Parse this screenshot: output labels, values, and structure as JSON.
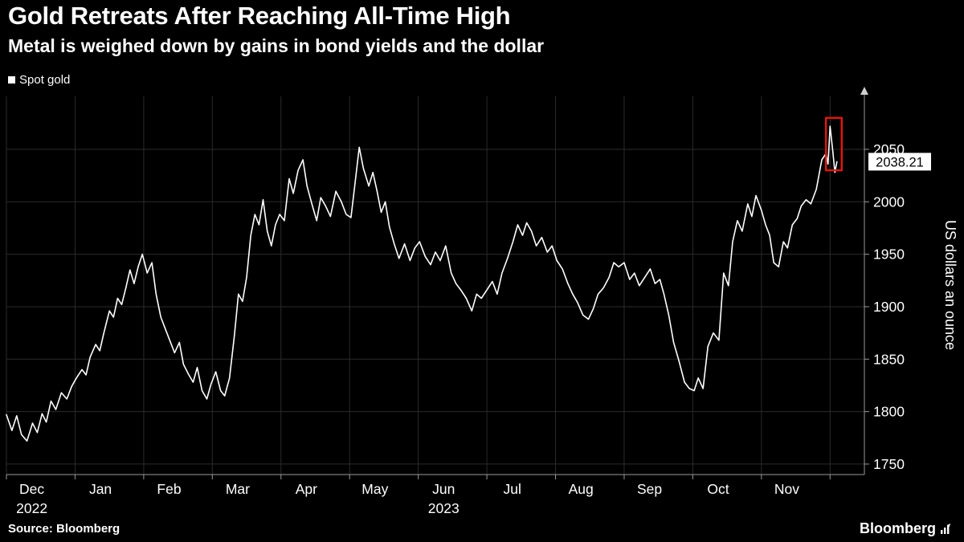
{
  "header": {
    "title": "Gold Retreats After Reaching All-Time High",
    "subtitle": "Metal is weighed down by gains in bond yields and the dollar"
  },
  "legend": {
    "label": "Spot gold",
    "swatch_color": "#ffffff"
  },
  "footer": {
    "source": "Source: Bloomberg",
    "brand": "Bloomberg"
  },
  "chart_data": {
    "type": "line",
    "title": "Gold Retreats After Reaching All-Time High",
    "subtitle": "Metal is weighed down by gains in bond yields and the dollar",
    "ylabel": "US dollars an ounce",
    "xlabel": "",
    "x_unit": "months since 2022-12-01",
    "xlim": [
      0,
      12.5
    ],
    "ylim": [
      1740,
      2100
    ],
    "y_ticks": [
      1750,
      1800,
      1850,
      1900,
      1950,
      2000,
      2050
    ],
    "x_tick_labels": [
      "Dec",
      "Jan",
      "Feb",
      "Mar",
      "Apr",
      "May",
      "Jun",
      "Jul",
      "Aug",
      "Sep",
      "Oct",
      "Nov"
    ],
    "x_year_labels": [
      {
        "label": "2022",
        "month": 0
      },
      {
        "label": "2023",
        "month": 6
      }
    ],
    "legend_position": "top-left",
    "grid": true,
    "last_price_label": "2038.21",
    "last_price_value": 2038.21,
    "highlight_box": {
      "x0": 11.94,
      "x1": 12.17,
      "y0": 2030,
      "y1": 2080
    },
    "colors": {
      "background": "#000000",
      "line": "#ffffff",
      "grid": "#2b2b2b",
      "axis": "#9a9a9a",
      "tick_text": "#ffffff",
      "highlight": "#e3170f",
      "label_bg": "#ffffff",
      "label_text": "#000000"
    },
    "series": [
      {
        "name": "Spot gold",
        "color": "#ffffff",
        "points": [
          [
            0.0,
            1797
          ],
          [
            0.08,
            1782
          ],
          [
            0.15,
            1796
          ],
          [
            0.22,
            1778
          ],
          [
            0.3,
            1772
          ],
          [
            0.38,
            1789
          ],
          [
            0.45,
            1780
          ],
          [
            0.52,
            1798
          ],
          [
            0.58,
            1790
          ],
          [
            0.65,
            1810
          ],
          [
            0.72,
            1802
          ],
          [
            0.8,
            1818
          ],
          [
            0.88,
            1812
          ],
          [
            0.95,
            1824
          ],
          [
            1.02,
            1832
          ],
          [
            1.1,
            1840
          ],
          [
            1.16,
            1835
          ],
          [
            1.22,
            1852
          ],
          [
            1.3,
            1864
          ],
          [
            1.36,
            1858
          ],
          [
            1.42,
            1875
          ],
          [
            1.5,
            1896
          ],
          [
            1.56,
            1890
          ],
          [
            1.62,
            1908
          ],
          [
            1.68,
            1902
          ],
          [
            1.74,
            1918
          ],
          [
            1.8,
            1935
          ],
          [
            1.86,
            1922
          ],
          [
            1.92,
            1938
          ],
          [
            1.98,
            1950
          ],
          [
            2.05,
            1932
          ],
          [
            2.12,
            1942
          ],
          [
            2.18,
            1912
          ],
          [
            2.25,
            1890
          ],
          [
            2.32,
            1878
          ],
          [
            2.38,
            1868
          ],
          [
            2.45,
            1856
          ],
          [
            2.52,
            1866
          ],
          [
            2.58,
            1845
          ],
          [
            2.65,
            1836
          ],
          [
            2.72,
            1828
          ],
          [
            2.78,
            1842
          ],
          [
            2.85,
            1820
          ],
          [
            2.92,
            1812
          ],
          [
            2.98,
            1826
          ],
          [
            3.05,
            1838
          ],
          [
            3.12,
            1820
          ],
          [
            3.18,
            1815
          ],
          [
            3.25,
            1832
          ],
          [
            3.32,
            1872
          ],
          [
            3.38,
            1912
          ],
          [
            3.44,
            1905
          ],
          [
            3.5,
            1928
          ],
          [
            3.56,
            1968
          ],
          [
            3.62,
            1988
          ],
          [
            3.68,
            1978
          ],
          [
            3.74,
            2002
          ],
          [
            3.8,
            1972
          ],
          [
            3.86,
            1958
          ],
          [
            3.92,
            1978
          ],
          [
            3.98,
            1988
          ],
          [
            4.05,
            1982
          ],
          [
            4.12,
            2022
          ],
          [
            4.18,
            2008
          ],
          [
            4.25,
            2030
          ],
          [
            4.32,
            2040
          ],
          [
            4.38,
            2015
          ],
          [
            4.45,
            1998
          ],
          [
            4.52,
            1982
          ],
          [
            4.58,
            2004
          ],
          [
            4.65,
            1996
          ],
          [
            4.72,
            1986
          ],
          [
            4.8,
            2010
          ],
          [
            4.88,
            2000
          ],
          [
            4.95,
            1988
          ],
          [
            5.02,
            1985
          ],
          [
            5.08,
            2018
          ],
          [
            5.14,
            2052
          ],
          [
            5.2,
            2032
          ],
          [
            5.28,
            2015
          ],
          [
            5.34,
            2028
          ],
          [
            5.4,
            2010
          ],
          [
            5.46,
            1990
          ],
          [
            5.52,
            2000
          ],
          [
            5.58,
            1976
          ],
          [
            5.65,
            1960
          ],
          [
            5.72,
            1946
          ],
          [
            5.8,
            1960
          ],
          [
            5.88,
            1944
          ],
          [
            5.95,
            1956
          ],
          [
            6.02,
            1962
          ],
          [
            6.1,
            1948
          ],
          [
            6.18,
            1940
          ],
          [
            6.25,
            1952
          ],
          [
            6.32,
            1944
          ],
          [
            6.4,
            1958
          ],
          [
            6.48,
            1932
          ],
          [
            6.55,
            1922
          ],
          [
            6.62,
            1916
          ],
          [
            6.7,
            1908
          ],
          [
            6.78,
            1896
          ],
          [
            6.85,
            1912
          ],
          [
            6.92,
            1908
          ],
          [
            7.0,
            1916
          ],
          [
            7.08,
            1924
          ],
          [
            7.15,
            1912
          ],
          [
            7.22,
            1932
          ],
          [
            7.3,
            1946
          ],
          [
            7.38,
            1962
          ],
          [
            7.45,
            1978
          ],
          [
            7.52,
            1968
          ],
          [
            7.58,
            1980
          ],
          [
            7.65,
            1972
          ],
          [
            7.72,
            1958
          ],
          [
            7.8,
            1966
          ],
          [
            7.88,
            1952
          ],
          [
            7.95,
            1958
          ],
          [
            8.02,
            1944
          ],
          [
            8.1,
            1936
          ],
          [
            8.18,
            1922
          ],
          [
            8.25,
            1912
          ],
          [
            8.32,
            1904
          ],
          [
            8.4,
            1892
          ],
          [
            8.48,
            1888
          ],
          [
            8.55,
            1898
          ],
          [
            8.62,
            1912
          ],
          [
            8.7,
            1918
          ],
          [
            8.78,
            1928
          ],
          [
            8.85,
            1942
          ],
          [
            8.92,
            1938
          ],
          [
            9.0,
            1942
          ],
          [
            9.08,
            1926
          ],
          [
            9.15,
            1932
          ],
          [
            9.22,
            1920
          ],
          [
            9.3,
            1928
          ],
          [
            9.38,
            1936
          ],
          [
            9.45,
            1922
          ],
          [
            9.52,
            1926
          ],
          [
            9.58,
            1912
          ],
          [
            9.65,
            1892
          ],
          [
            9.72,
            1866
          ],
          [
            9.8,
            1848
          ],
          [
            9.88,
            1828
          ],
          [
            9.95,
            1822
          ],
          [
            10.02,
            1820
          ],
          [
            10.08,
            1832
          ],
          [
            10.15,
            1822
          ],
          [
            10.22,
            1862
          ],
          [
            10.3,
            1875
          ],
          [
            10.38,
            1868
          ],
          [
            10.45,
            1932
          ],
          [
            10.52,
            1920
          ],
          [
            10.58,
            1962
          ],
          [
            10.65,
            1982
          ],
          [
            10.72,
            1972
          ],
          [
            10.8,
            1998
          ],
          [
            10.86,
            1986
          ],
          [
            10.92,
            2006
          ],
          [
            11.0,
            1992
          ],
          [
            11.06,
            1978
          ],
          [
            11.12,
            1968
          ],
          [
            11.18,
            1942
          ],
          [
            11.25,
            1938
          ],
          [
            11.32,
            1962
          ],
          [
            11.38,
            1956
          ],
          [
            11.45,
            1978
          ],
          [
            11.52,
            1984
          ],
          [
            11.58,
            1996
          ],
          [
            11.65,
            2002
          ],
          [
            11.72,
            1998
          ],
          [
            11.8,
            2012
          ],
          [
            11.88,
            2040
          ],
          [
            11.94,
            2046
          ],
          [
            11.97,
            2036
          ],
          [
            12.0,
            2072
          ],
          [
            12.04,
            2048
          ],
          [
            12.07,
            2028
          ],
          [
            12.1,
            2038.21
          ]
        ]
      }
    ]
  }
}
